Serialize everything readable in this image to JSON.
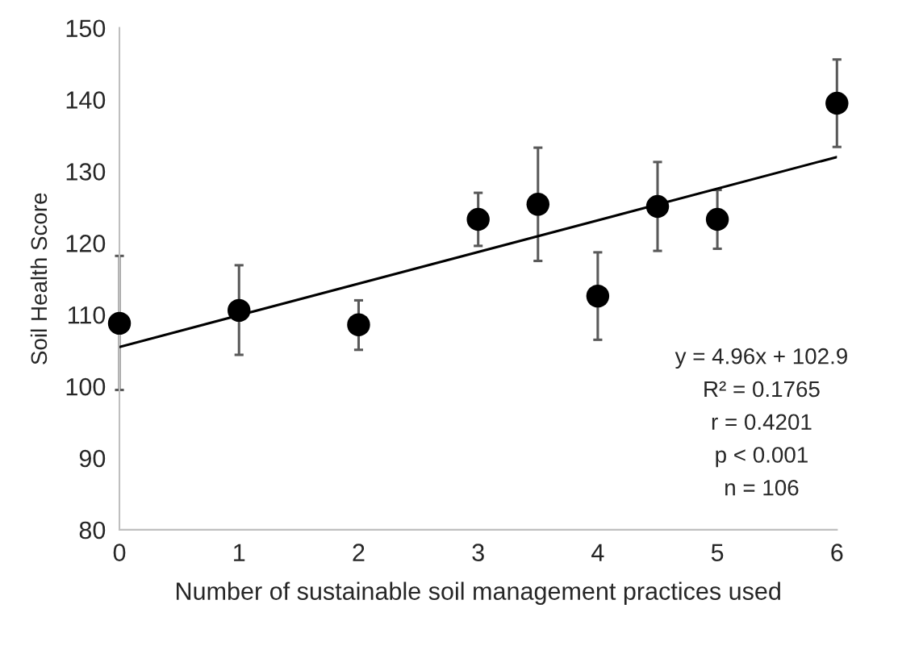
{
  "chart_data": {
    "type": "scatter",
    "xlabel": "Number of sustainable soil management practices used",
    "ylabel": "Soil Health Score",
    "xlim": [
      0,
      6
    ],
    "xticks": [
      0,
      1,
      2,
      3,
      4,
      5,
      6
    ],
    "ylim": [
      80,
      150
    ],
    "yticks": [
      80,
      90,
      100,
      110,
      120,
      130,
      140,
      150
    ],
    "grid": false,
    "marker": "circle",
    "series": [
      {
        "color": "#000000",
        "x": [
          0,
          1,
          2,
          3,
          3.5,
          4,
          4.5,
          5,
          6
        ],
        "values": [
          108.8,
          110.6,
          108.6,
          123.3,
          125.4,
          112.6,
          125.1,
          123.3,
          139.5
        ],
        "errors": [
          [
            99.5,
            118.2
          ],
          [
            104.4,
            116.9
          ],
          [
            105.1,
            112.0
          ],
          [
            119.6,
            127.0
          ],
          [
            117.5,
            133.3
          ],
          [
            106.5,
            118.7
          ],
          [
            118.9,
            131.3
          ],
          [
            119.2,
            127.4
          ],
          [
            133.4,
            145.6
          ]
        ]
      },
      {
        "type": "line",
        "color": "#000000",
        "x": [
          0,
          6
        ],
        "values": [
          105.5,
          132.0
        ],
        "marker": "none"
      }
    ],
    "annotations": [
      "y = 4.96x + 102.9",
      "R² = 0.1765",
      "r = 0.4201",
      "p < 0.001",
      "n = 106"
    ]
  }
}
